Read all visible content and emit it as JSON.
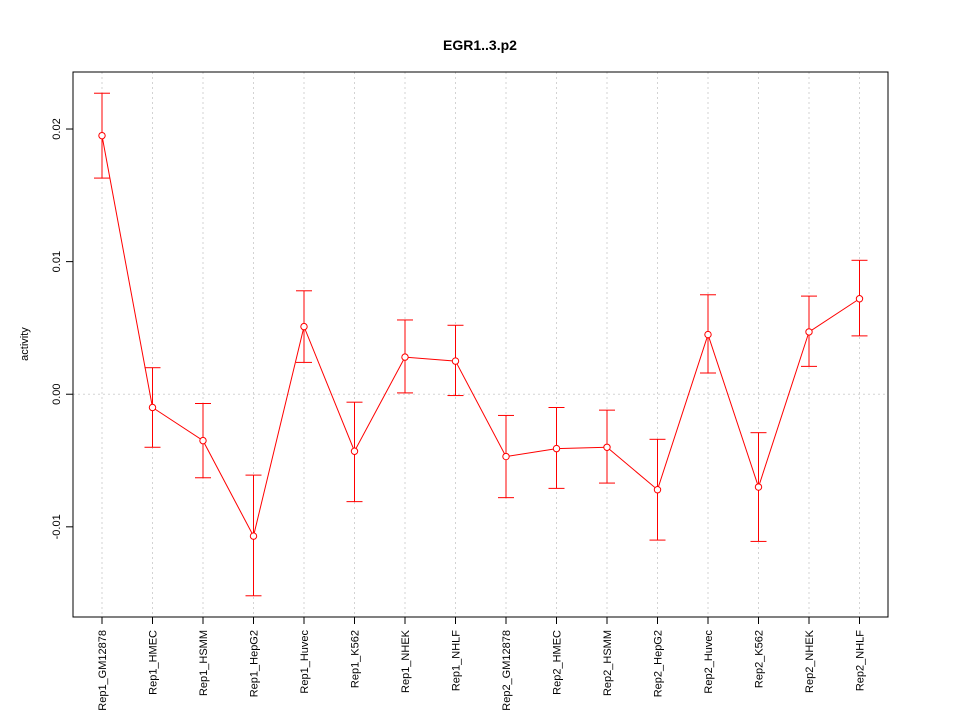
{
  "chart_data": {
    "type": "line",
    "title": "EGR1..3.p2",
    "xlabel": "",
    "ylabel": "activity",
    "categories": [
      "Rep1_GM12878",
      "Rep1_HMEC",
      "Rep1_HSMM",
      "Rep1_HepG2",
      "Rep1_Huvec",
      "Rep1_K562",
      "Rep1_NHEK",
      "Rep1_NHLF",
      "Rep2_GM12878",
      "Rep2_HMEC",
      "Rep2_HSMM",
      "Rep2_HepG2",
      "Rep2_Huvec",
      "Rep2_K562",
      "Rep2_NHEK",
      "Rep2_NHLF"
    ],
    "series": [
      {
        "values": [
          0.0195,
          -0.001,
          -0.0035,
          -0.0107,
          0.0051,
          -0.0043,
          0.0028,
          0.0025,
          -0.0047,
          -0.0041,
          -0.004,
          -0.0072,
          0.0045,
          -0.007,
          0.0047,
          0.0072
        ],
        "lower": [
          0.0163,
          -0.004,
          -0.0063,
          -0.0152,
          0.0024,
          -0.0081,
          0.0001,
          -0.0001,
          -0.0078,
          -0.0071,
          -0.0067,
          -0.011,
          0.0016,
          -0.0111,
          0.0021,
          0.0044
        ],
        "upper": [
          0.0227,
          0.002,
          -0.0007,
          -0.0061,
          0.0078,
          -0.0006,
          0.0056,
          0.0052,
          -0.0016,
          -0.001,
          -0.0012,
          -0.0034,
          0.0075,
          -0.0029,
          0.0074,
          0.0101
        ]
      }
    ],
    "yticks": [
      -0.01,
      0.0,
      0.01,
      0.02
    ],
    "ytick_labels": [
      "-0.01",
      "0.00",
      "0.01",
      "0.02"
    ],
    "ylim": [
      -0.0168,
      0.0243
    ],
    "grid": true,
    "colors": {
      "series": "#ff0000",
      "grid": "#d3d3d3",
      "axis": "#000000"
    }
  }
}
